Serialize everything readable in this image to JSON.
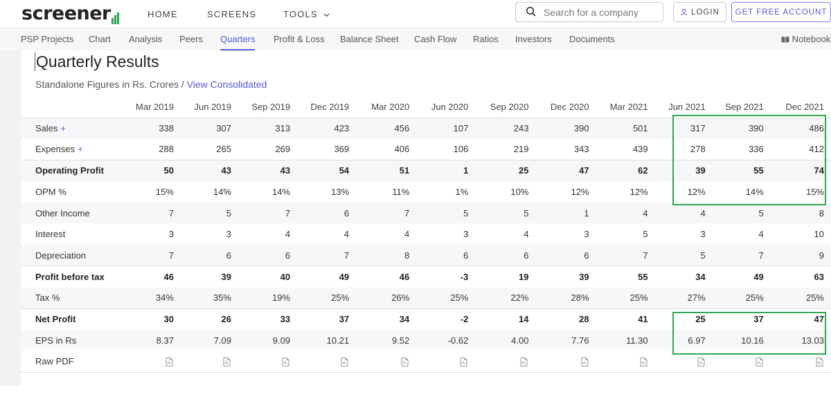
{
  "header": {
    "logo_text": "screener",
    "nav": [
      "HOME",
      "SCREENS",
      "TOOLS"
    ],
    "tools_chevron_icon": "chevron-down-icon",
    "search": {
      "placeholder": "Search for a company",
      "icon": "search-icon"
    },
    "login_label": "LOGIN",
    "login_icon": "user-icon",
    "free_account_label": "GET FREE ACCOUNT"
  },
  "subnav": {
    "items": [
      "PSP Projects",
      "Chart",
      "Analysis",
      "Peers",
      "Quarters",
      "Profit & Loss",
      "Balance Sheet",
      "Cash Flow",
      "Ratios",
      "Investors",
      "Documents"
    ],
    "active": "Quarters",
    "notebook_label": "Notebook",
    "notebook_icon": "book-icon"
  },
  "section": {
    "title": "Quarterly Results",
    "subtitle": "Standalone Figures in Rs. Crores /",
    "link": "View Consolidated"
  },
  "table": {
    "columns": [
      "Mar 2019",
      "Jun 2019",
      "Sep 2019",
      "Dec 2019",
      "Mar 2020",
      "Jun 2020",
      "Sep 2020",
      "Dec 2020",
      "Mar 2021",
      "Jun 2021",
      "Sep 2021",
      "Dec 2021"
    ],
    "rows": [
      {
        "label": "Sales",
        "plus": "+",
        "values": [
          "338",
          "307",
          "313",
          "423",
          "456",
          "107",
          "243",
          "390",
          "501",
          "317",
          "390",
          "486"
        ]
      },
      {
        "label": "Expenses",
        "plus": "+",
        "values": [
          "288",
          "265",
          "269",
          "369",
          "406",
          "106",
          "219",
          "343",
          "439",
          "278",
          "336",
          "412"
        ]
      },
      {
        "label": "Operating Profit",
        "values": [
          "50",
          "43",
          "43",
          "54",
          "51",
          "1",
          "25",
          "47",
          "62",
          "39",
          "55",
          "74"
        ]
      },
      {
        "label": "OPM %",
        "values": [
          "15%",
          "14%",
          "14%",
          "13%",
          "11%",
          "1%",
          "10%",
          "12%",
          "12%",
          "12%",
          "14%",
          "15%"
        ]
      },
      {
        "label": "Other Income",
        "values": [
          "7",
          "5",
          "7",
          "6",
          "7",
          "5",
          "5",
          "1",
          "4",
          "4",
          "5",
          "8"
        ]
      },
      {
        "label": "Interest",
        "values": [
          "3",
          "3",
          "4",
          "4",
          "4",
          "3",
          "4",
          "3",
          "5",
          "3",
          "4",
          "10"
        ]
      },
      {
        "label": "Depreciation",
        "values": [
          "7",
          "6",
          "6",
          "7",
          "8",
          "6",
          "6",
          "6",
          "7",
          "5",
          "7",
          "9"
        ]
      },
      {
        "label": "Profit before tax",
        "values": [
          "46",
          "39",
          "40",
          "49",
          "46",
          "-3",
          "19",
          "39",
          "55",
          "34",
          "49",
          "63"
        ]
      },
      {
        "label": "Tax %",
        "values": [
          "34%",
          "35%",
          "19%",
          "25%",
          "26%",
          "25%",
          "22%",
          "28%",
          "25%",
          "27%",
          "25%",
          "25%"
        ]
      },
      {
        "label": "Net Profit",
        "values": [
          "30",
          "26",
          "33",
          "37",
          "34",
          "-2",
          "14",
          "28",
          "41",
          "25",
          "37",
          "47"
        ]
      },
      {
        "label": "EPS in Rs",
        "values": [
          "8.37",
          "7.09",
          "9.09",
          "10.21",
          "9.52",
          "-0.62",
          "4.00",
          "7.76",
          "11.30",
          "6.97",
          "10.16",
          "13.03"
        ]
      }
    ],
    "raw_pdf_label": "Raw PDF",
    "raw_pdf_icon": "pdf-file-icon"
  },
  "highlight_color": "#2fa84f",
  "accent_color": "#5459d6"
}
